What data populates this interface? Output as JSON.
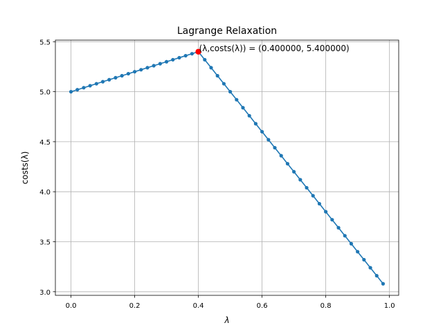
{
  "chart_data": {
    "type": "line",
    "title": "Lagrange Relaxation",
    "xlabel": "λ",
    "ylabel": "costs(λ)",
    "xlim": [
      -0.049,
      1.029
    ],
    "ylim": [
      2.964,
      5.516
    ],
    "x_ticks": [
      0.0,
      0.2,
      0.4,
      0.6,
      0.8,
      1.0
    ],
    "x_tick_labels": [
      "0.0",
      "0.2",
      "0.4",
      "0.6",
      "0.8",
      "1.0"
    ],
    "y_ticks": [
      3.0,
      3.5,
      4.0,
      4.5,
      5.0,
      5.5
    ],
    "y_tick_labels": [
      "3.0",
      "3.5",
      "4.0",
      "4.5",
      "5.0",
      "5.5"
    ],
    "grid": true,
    "series": [
      {
        "color": "#1f77b4",
        "marker": "circle",
        "x": [
          0.0,
          0.02,
          0.04,
          0.06,
          0.08,
          0.1,
          0.12,
          0.14,
          0.16,
          0.18,
          0.2,
          0.22,
          0.24,
          0.26,
          0.28,
          0.3,
          0.32,
          0.34,
          0.36,
          0.38,
          0.4,
          0.42,
          0.44,
          0.46,
          0.48,
          0.5,
          0.52,
          0.54,
          0.56,
          0.58,
          0.6,
          0.62,
          0.64,
          0.66,
          0.68,
          0.7,
          0.72,
          0.74,
          0.76,
          0.78,
          0.8,
          0.82,
          0.84,
          0.86,
          0.88,
          0.9,
          0.92,
          0.94,
          0.96,
          0.98
        ],
        "y": [
          5.0,
          5.02,
          5.04,
          5.06,
          5.08,
          5.1,
          5.12,
          5.14,
          5.16,
          5.18,
          5.2,
          5.22,
          5.24,
          5.26,
          5.28,
          5.3,
          5.32,
          5.34,
          5.36,
          5.38,
          5.4,
          5.32,
          5.24,
          5.16,
          5.08,
          5.0,
          4.92,
          4.84,
          4.76,
          4.68,
          4.6,
          4.52,
          4.44,
          4.36,
          4.28,
          4.2,
          4.12,
          4.04,
          3.96,
          3.88,
          3.8,
          3.72,
          3.64,
          3.56,
          3.48,
          3.4,
          3.32,
          3.24,
          3.16,
          3.08
        ]
      }
    ],
    "highlight": {
      "x": 0.4,
      "y": 5.4,
      "color": "#ff0000",
      "annotation": "(λ,costs(λ)) = (0.400000, 5.400000)"
    }
  }
}
